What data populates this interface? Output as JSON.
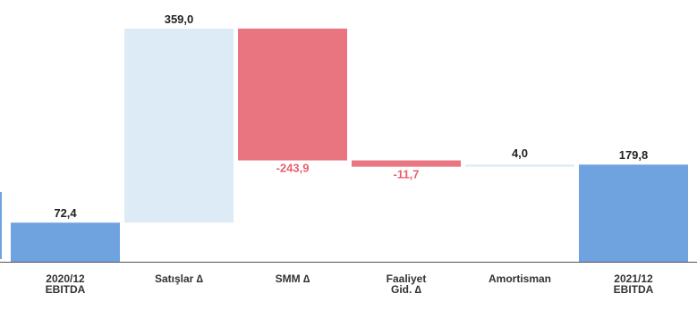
{
  "chart_data": {
    "type": "bar",
    "subtype": "waterfall",
    "title": "",
    "xlabel": "",
    "ylabel": "",
    "grid": false,
    "legend": "none",
    "categories": [
      [
        "2020/12",
        "EBITDA"
      ],
      [
        "Satışlar ∆"
      ],
      [
        "SMM ∆"
      ],
      [
        "Faaliyet",
        "Gid. ∆"
      ],
      [
        "Amortisman"
      ],
      [
        "2021/12",
        "EBITDA"
      ]
    ],
    "value_labels": [
      "72,4",
      "359,0",
      "-243,9",
      "-11,7",
      "4,0",
      "179,8"
    ],
    "values": [
      72.4,
      359.0,
      -243.9,
      -11.7,
      4.0,
      179.8
    ],
    "bars": [
      {
        "kind": "total",
        "start": 0,
        "end": 72.4
      },
      {
        "kind": "increase",
        "start": 72.4,
        "end": 431.4
      },
      {
        "kind": "decrease",
        "start": 431.4,
        "end": 187.5
      },
      {
        "kind": "decrease",
        "start": 187.5,
        "end": 175.8
      },
      {
        "kind": "increase",
        "start": 175.8,
        "end": 179.8
      },
      {
        "kind": "total",
        "start": 0,
        "end": 179.8
      }
    ],
    "ylim": [
      0,
      431.4
    ],
    "colors": {
      "total": "#6fa3e0",
      "increase": "#dcebf5",
      "decrease": "#e87580",
      "decrease_label": "#e8606e",
      "label": "#222222",
      "axis": "#555555"
    }
  }
}
